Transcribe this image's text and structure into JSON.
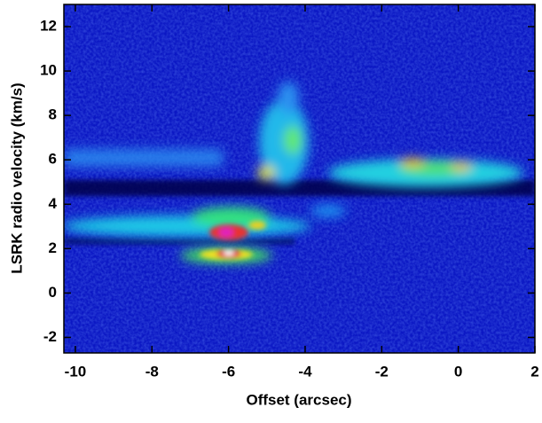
{
  "chart_data": {
    "type": "image",
    "x_label": "Offset (arcsec)",
    "y_label": "LSRK radio velocity  (km/s)",
    "xlim": [
      -10.3,
      2
    ],
    "ylim": [
      -2.7,
      13
    ],
    "xticks": [
      -10,
      -8,
      -6,
      -4,
      -2,
      0,
      2
    ],
    "yticks": [
      -2,
      0,
      2,
      4,
      6,
      8,
      10,
      12
    ]
  }
}
